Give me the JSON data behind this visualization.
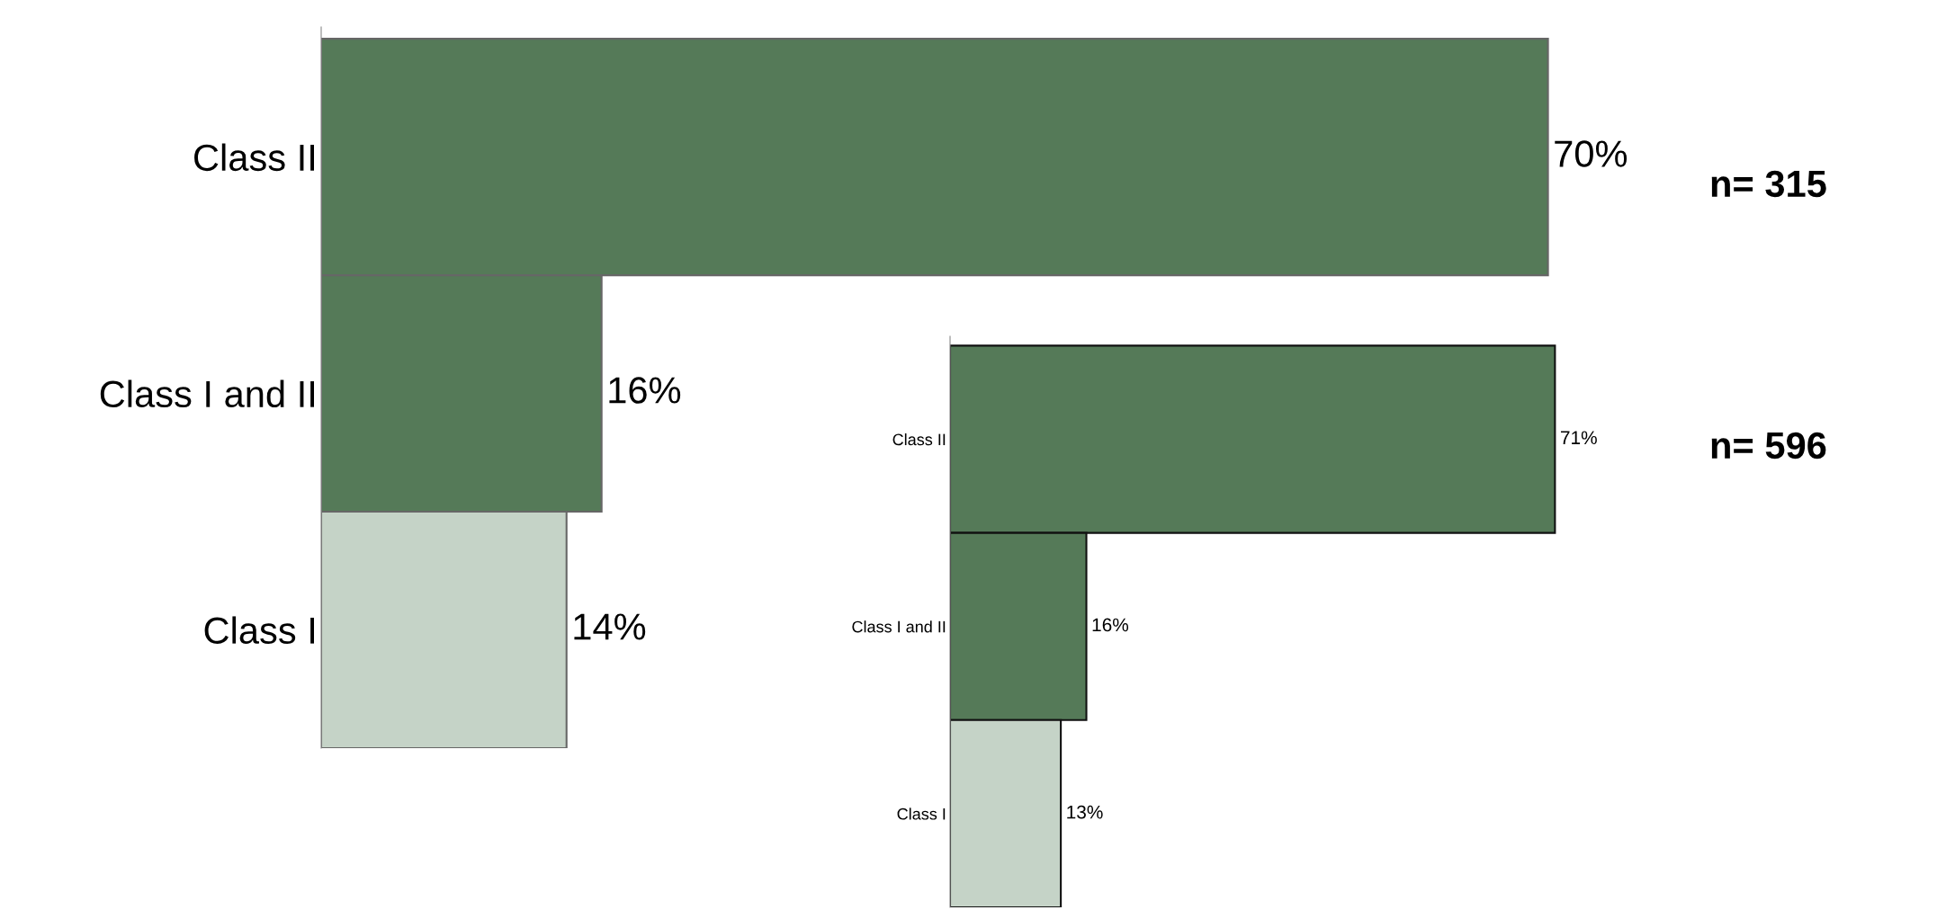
{
  "chart_data": [
    {
      "type": "bar",
      "orientation": "horizontal",
      "categories": [
        "Class II",
        "Class I and II",
        "Class I"
      ],
      "values": [
        70,
        16,
        14
      ],
      "value_labels": [
        "70%",
        "16%",
        "14%"
      ],
      "colors": [
        "#557a58",
        "#557a58",
        "#c5d3c7"
      ],
      "annotations": [
        "n= 315"
      ],
      "grid": false,
      "legend": false
    },
    {
      "type": "bar",
      "orientation": "horizontal",
      "categories": [
        "Class II",
        "Class I and II",
        "Class I"
      ],
      "values": [
        71,
        16,
        13
      ],
      "value_labels": [
        "71%",
        "16%",
        "13%"
      ],
      "colors": [
        "#557a58",
        "#557a58",
        "#c5d3c7"
      ],
      "annotations": [
        "n= 596"
      ],
      "grid": false,
      "legend": false
    }
  ]
}
